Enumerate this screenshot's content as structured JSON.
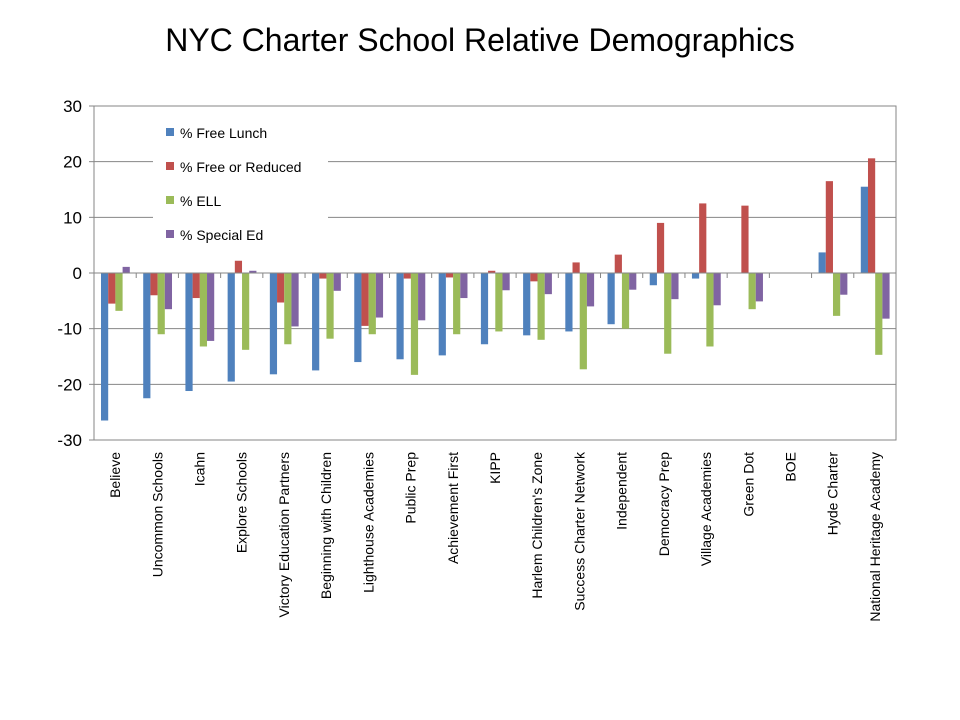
{
  "chart_data": {
    "type": "bar",
    "title": "NYC Charter School Relative Demographics",
    "xlabel": "",
    "ylabel": "",
    "ylim": [
      -30,
      30
    ],
    "yticks": [
      30,
      20,
      10,
      0,
      -10,
      -20,
      -30
    ],
    "grid": true,
    "legend_position": "top-left",
    "categories": [
      "Believe",
      "Uncommon Schools",
      "Icahn",
      "Explore Schools",
      "Victory Education Partners",
      "Beginning with Children",
      "Lighthouse Academies",
      "Public Prep",
      "Achievement First",
      "KIPP",
      "Harlem Children's Zone",
      "Success Charter Network",
      "Independent",
      "Democracy Prep",
      "Village Academies",
      "Green Dot",
      "BOE",
      "Hyde Charter",
      "National Heritage Academy"
    ],
    "series": [
      {
        "name": "% Free Lunch",
        "color": "#4F81BD",
        "values": [
          -26.5,
          -22.5,
          -21.2,
          -19.5,
          -18.2,
          -17.5,
          -16.0,
          -15.5,
          -14.8,
          -12.8,
          -11.2,
          -10.5,
          -9.2,
          -2.2,
          -1.0,
          0,
          0,
          3.7,
          15.5
        ]
      },
      {
        "name": "% Free or Reduced",
        "color": "#C0504D",
        "values": [
          -5.5,
          -4.0,
          -4.5,
          2.2,
          -5.3,
          -1.0,
          -9.5,
          -1.0,
          -0.8,
          0.4,
          -1.5,
          1.9,
          3.3,
          9.0,
          12.5,
          12.1,
          0,
          16.5,
          20.6
        ]
      },
      {
        "name": "% ELL",
        "color": "#9BBB59",
        "values": [
          -6.8,
          -11.0,
          -13.2,
          -13.8,
          -12.8,
          -11.8,
          -11.0,
          -18.3,
          -11.0,
          -10.5,
          -12.0,
          -17.3,
          -10.0,
          -14.5,
          -13.2,
          -6.5,
          0,
          -7.7,
          -14.7
        ]
      },
      {
        "name": "% Special Ed",
        "color": "#8064A2",
        "values": [
          1.1,
          -6.5,
          -12.2,
          0.4,
          -9.6,
          -3.2,
          -8.0,
          -8.5,
          -4.5,
          -3.1,
          -3.8,
          -6.0,
          -3.0,
          -4.7,
          -5.8,
          -5.1,
          0,
          -3.9,
          -8.2
        ]
      }
    ]
  }
}
